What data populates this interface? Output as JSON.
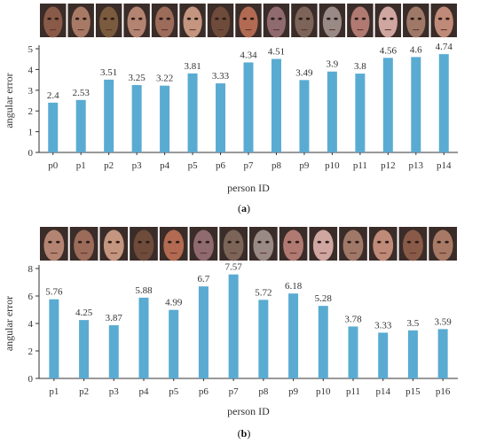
{
  "chart_data": [
    {
      "type": "bar",
      "panel_label": "(a)",
      "categories": [
        "p0",
        "p1",
        "p2",
        "p3",
        "p4",
        "p5",
        "p6",
        "p7",
        "p8",
        "p9",
        "p10",
        "p11",
        "p12",
        "p13",
        "p14"
      ],
      "values": [
        2.4,
        2.53,
        3.51,
        3.25,
        3.22,
        3.81,
        3.33,
        4.34,
        4.51,
        3.49,
        3.9,
        3.8,
        4.56,
        4.6,
        4.74
      ],
      "value_labels": [
        "2.4",
        "2.53",
        "3.51",
        "3.25",
        "3.22",
        "3.81",
        "3.33",
        "4.34",
        "4.51",
        "3.49",
        "3.9",
        "3.8",
        "4.56",
        "4.6",
        "4.74"
      ],
      "xlabel": "person ID",
      "ylabel": "angular error",
      "ylim": [
        0,
        5
      ],
      "yticks": [
        0,
        1,
        2,
        3,
        4,
        5
      ],
      "header": "row of face photographs, one per person ID",
      "bar_color": "#5aabd2"
    },
    {
      "type": "bar",
      "panel_label": "(b)",
      "categories": [
        "p1",
        "p2",
        "p3",
        "p4",
        "p5",
        "p6",
        "p7",
        "p8",
        "p9",
        "p10",
        "p11",
        "p14",
        "p15",
        "p16"
      ],
      "values": [
        5.76,
        4.25,
        3.87,
        5.88,
        4.99,
        6.7,
        7.57,
        5.72,
        6.18,
        5.28,
        3.78,
        3.33,
        3.5,
        3.59
      ],
      "value_labels": [
        "5.76",
        "4.25",
        "3.87",
        "5.88",
        "4.99",
        "6.7",
        "7.57",
        "5.72",
        "6.18",
        "5.28",
        "3.78",
        "3.33",
        "3.5",
        "3.59"
      ],
      "xlabel": "person ID",
      "ylabel": "angular error",
      "ylim": [
        0,
        8
      ],
      "yticks": [
        0,
        2,
        4,
        6,
        8
      ],
      "header": "row of face photographs, one per person ID",
      "bar_color": "#5aabd2"
    }
  ]
}
